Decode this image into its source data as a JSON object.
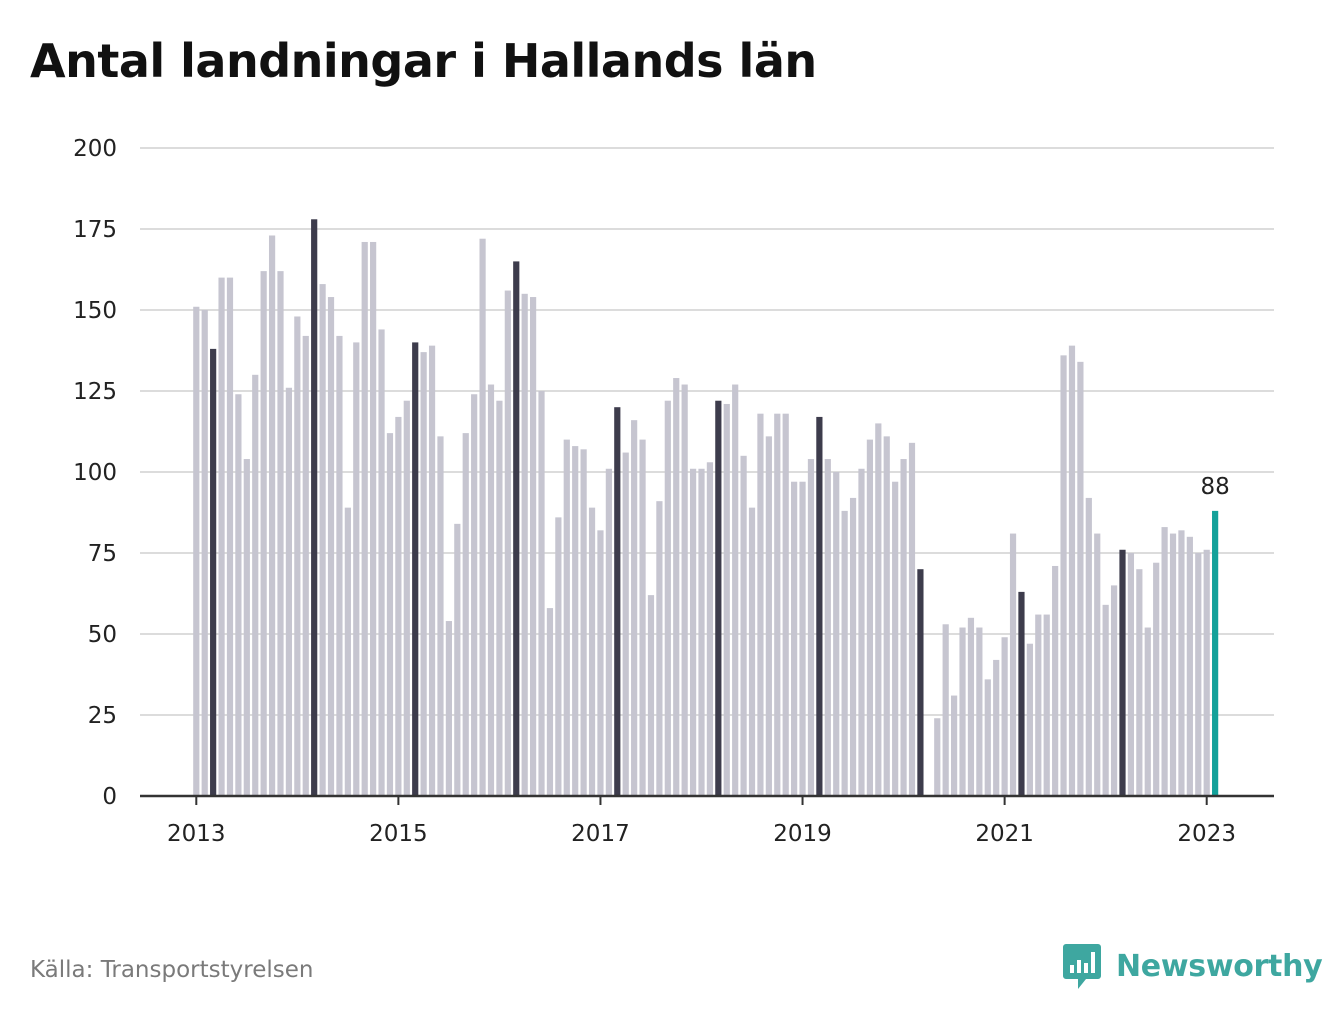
{
  "title": "Antal landningar i Hallands län",
  "source": "Källa: Transportstyrelsen",
  "brand": {
    "name": "Newsworthy",
    "icon": "newsworthy-logo-icon"
  },
  "colors": {
    "regular": "#c6c5d0",
    "march": "#3d3c4c",
    "latest": "#13a19a",
    "grid": "#dcdcdc",
    "axis": "#333333",
    "brand": "#3ea7a0"
  },
  "chart_data": {
    "type": "bar",
    "title": "Antal landningar i Hallands län",
    "xlabel": "",
    "ylabel": "",
    "ylim": [
      0,
      200
    ],
    "y_ticks": [
      "0",
      "25",
      "50",
      "75",
      "100",
      "125",
      "150",
      "175",
      "200"
    ],
    "x_ticks": [
      "2013",
      "2015",
      "2017",
      "2019",
      "2021",
      "2023"
    ],
    "grid": true,
    "highlight": "Each March bar drawn dark; the latest month drawn teal with its value label",
    "latest_label": "88",
    "series": [
      {
        "values": [
          151,
          150,
          138,
          160,
          160,
          124,
          104,
          130,
          162,
          173,
          162,
          126,
          148,
          142,
          178,
          158,
          154,
          142,
          89,
          140,
          171,
          171,
          144,
          112,
          117,
          122,
          140,
          137,
          139,
          111,
          54,
          84,
          112,
          124,
          172,
          127,
          122,
          156,
          165,
          155,
          154,
          125,
          58,
          86,
          110,
          108,
          107,
          89,
          82,
          101,
          120,
          106,
          116,
          110,
          62,
          91,
          122,
          129,
          127,
          101,
          101,
          103,
          122,
          121,
          127,
          105,
          89,
          118,
          111,
          118,
          118,
          97,
          97,
          104,
          117,
          104,
          100,
          88,
          92,
          101,
          110,
          115,
          111,
          97,
          104,
          109,
          70,
          null,
          24,
          53,
          31,
          52,
          55,
          52,
          36,
          42,
          49,
          81,
          63,
          47,
          56,
          56,
          71,
          136,
          139,
          134,
          92,
          81,
          59,
          65,
          76,
          75,
          70,
          52,
          72,
          83,
          81,
          82,
          80,
          75,
          76,
          88
        ]
      }
    ]
  }
}
